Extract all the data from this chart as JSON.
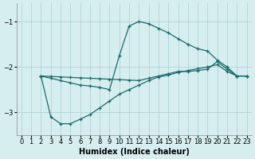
{
  "xlabel": "Humidex (Indice chaleur)",
  "bg_color": "#d6eef0",
  "grid_color": "#aacdd4",
  "line_color": "#1a6b6b",
  "xlim": [
    -0.5,
    23.5
  ],
  "ylim": [
    -3.5,
    -0.6
  ],
  "yticks": [
    -3,
    -2,
    -1
  ],
  "xticks": [
    0,
    1,
    2,
    3,
    4,
    5,
    6,
    7,
    8,
    9,
    10,
    11,
    12,
    13,
    14,
    15,
    16,
    17,
    18,
    19,
    20,
    21,
    22,
    23
  ],
  "series1_x": [
    2,
    3,
    4,
    5,
    6,
    7,
    8,
    9,
    10,
    11,
    12,
    13,
    14,
    15,
    16,
    17,
    18,
    19,
    20,
    21,
    22,
    23
  ],
  "series1_y": [
    -2.2,
    -2.25,
    -2.3,
    -2.35,
    -2.4,
    -2.42,
    -2.45,
    -2.5,
    -1.75,
    -1.1,
    -1.0,
    -1.05,
    -1.15,
    -1.25,
    -1.38,
    -1.5,
    -1.6,
    -1.65,
    -1.85,
    -2.0,
    -2.2,
    -2.2
  ],
  "series2_x": [
    2,
    3,
    4,
    5,
    6,
    7,
    8,
    9,
    10,
    11,
    12,
    13,
    14,
    15,
    16,
    17,
    18,
    19,
    20,
    21,
    22,
    23
  ],
  "series2_y": [
    -2.2,
    -2.21,
    -2.22,
    -2.23,
    -2.24,
    -2.25,
    -2.26,
    -2.27,
    -2.28,
    -2.29,
    -2.3,
    -2.25,
    -2.2,
    -2.15,
    -2.1,
    -2.1,
    -2.08,
    -2.05,
    -1.88,
    -2.05,
    -2.2,
    -2.2
  ],
  "series3_x": [
    2,
    3,
    4,
    5,
    6,
    7,
    8,
    9,
    10,
    11,
    12,
    13,
    14,
    15,
    16,
    17,
    18,
    19,
    20,
    21,
    22,
    23
  ],
  "series3_y": [
    -2.2,
    -3.1,
    -3.25,
    -3.25,
    -3.15,
    -3.05,
    -2.9,
    -2.75,
    -2.6,
    -2.5,
    -2.4,
    -2.3,
    -2.22,
    -2.18,
    -2.12,
    -2.08,
    -2.04,
    -2.0,
    -1.95,
    -2.1,
    -2.2,
    -2.2
  ]
}
